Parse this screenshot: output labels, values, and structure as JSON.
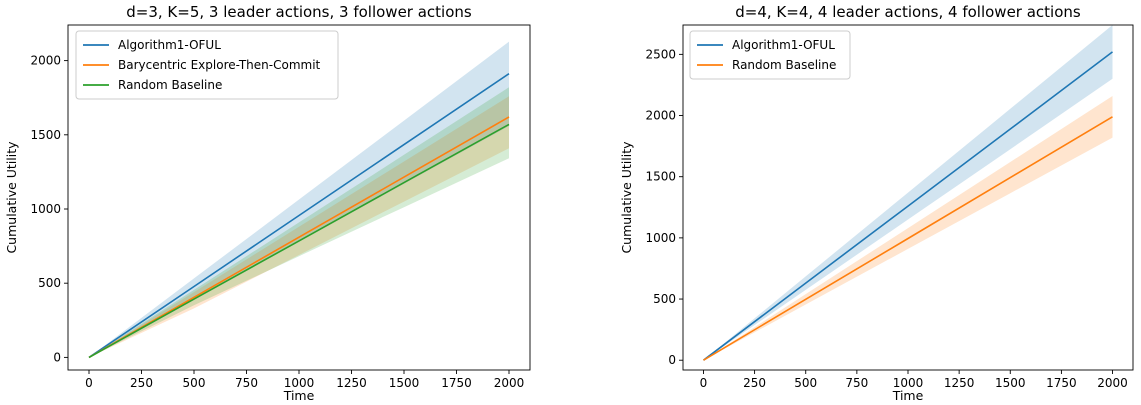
{
  "chart_data": [
    {
      "type": "line",
      "title": "d=3, K=5, 3 leader actions, 3 follower actions",
      "xlabel": "Time",
      "ylabel": "Cumulative Utility",
      "xlim": [
        -100,
        2100
      ],
      "ylim": [
        -85,
        2240
      ],
      "xticks": [
        0,
        250,
        500,
        750,
        1000,
        1250,
        1500,
        1750,
        2000
      ],
      "yticks": [
        0,
        500,
        1000,
        1500,
        2000
      ],
      "legend_position": "top-left",
      "grid": false,
      "x": [
        0,
        500,
        1000,
        1500,
        2000
      ],
      "series": [
        {
          "name": "Algorithm1-OFUL",
          "color": "#1f77b4",
          "values": [
            0,
            478,
            956,
            1434,
            1912
          ],
          "lower": [
            0,
            390,
            780,
            1170,
            1560
          ],
          "upper": [
            0,
            532,
            1064,
            1596,
            2128
          ]
        },
        {
          "name": "Barycentric Explore-Then-Commit",
          "color": "#ff7f0e",
          "values": [
            0,
            405,
            810,
            1215,
            1620
          ],
          "lower": [
            0,
            330,
            690,
            1050,
            1410
          ],
          "upper": [
            0,
            440,
            880,
            1320,
            1760
          ]
        },
        {
          "name": "Random Baseline",
          "color": "#2ca02c",
          "values": [
            0,
            393,
            785,
            1178,
            1570
          ],
          "lower": [
            0,
            352,
            682,
            1012,
            1342
          ],
          "upper": [
            0,
            455,
            910,
            1365,
            1820
          ]
        }
      ]
    },
    {
      "type": "line",
      "title": "d=4, K=4, 4 leader actions, 4 follower actions",
      "xlabel": "Time",
      "ylabel": "Cumulative Utility",
      "xlim": [
        -100,
        2100
      ],
      "ylim": [
        -80,
        2740
      ],
      "xticks": [
        0,
        250,
        500,
        750,
        1000,
        1250,
        1500,
        1750,
        2000
      ],
      "yticks": [
        0,
        500,
        1000,
        1500,
        2000,
        2500
      ],
      "legend_position": "top-left",
      "grid": false,
      "x": [
        0,
        500,
        1000,
        1500,
        2000
      ],
      "series": [
        {
          "name": "Algorithm1-OFUL",
          "color": "#1f77b4",
          "values": [
            0,
            630,
            1260,
            1890,
            2520
          ],
          "lower": [
            0,
            575,
            1150,
            1725,
            2300
          ],
          "upper": [
            0,
            685,
            1370,
            2055,
            2740
          ]
        },
        {
          "name": "Random Baseline",
          "color": "#ff7f0e",
          "values": [
            0,
            498,
            995,
            1493,
            1990
          ],
          "lower": [
            0,
            455,
            910,
            1365,
            1820
          ],
          "upper": [
            0,
            540,
            1080,
            1620,
            2160
          ]
        }
      ]
    }
  ]
}
